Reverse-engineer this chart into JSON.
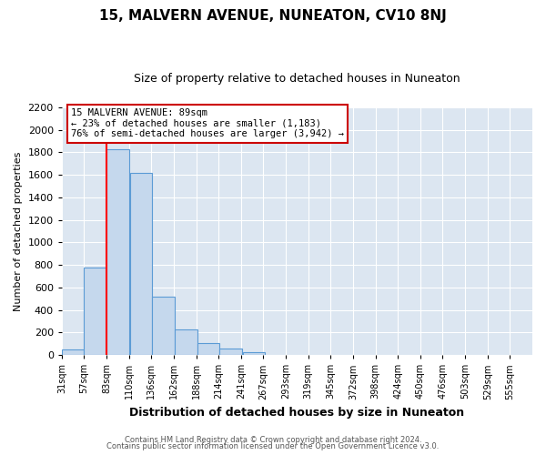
{
  "title": "15, MALVERN AVENUE, NUNEATON, CV10 8NJ",
  "subtitle": "Size of property relative to detached houses in Nuneaton",
  "xlabel": "Distribution of detached houses by size in Nuneaton",
  "ylabel": "Number of detached properties",
  "bar_values": [
    50,
    780,
    1830,
    1620,
    520,
    230,
    110,
    55,
    25
  ],
  "bin_left_edges": [
    31,
    57,
    83,
    110,
    136,
    162,
    188,
    214,
    241
  ],
  "bin_width": 26,
  "all_xtick_labels": [
    "31sqm",
    "57sqm",
    "83sqm",
    "110sqm",
    "136sqm",
    "162sqm",
    "188sqm",
    "214sqm",
    "241sqm",
    "267sqm",
    "293sqm",
    "319sqm",
    "345sqm",
    "372sqm",
    "398sqm",
    "424sqm",
    "450sqm",
    "476sqm",
    "503sqm",
    "529sqm",
    "555sqm"
  ],
  "ylim": [
    0,
    2200
  ],
  "yticks": [
    0,
    200,
    400,
    600,
    800,
    1000,
    1200,
    1400,
    1600,
    1800,
    2000,
    2200
  ],
  "bar_color": "#c5d8ed",
  "bar_edge_color": "#5b9bd5",
  "red_line_x": 83,
  "annotation_title": "15 MALVERN AVENUE: 89sqm",
  "annotation_line1": "← 23% of detached houses are smaller (1,183)",
  "annotation_line2": "76% of semi-detached houses are larger (3,942) →",
  "footer_line1": "Contains HM Land Registry data © Crown copyright and database right 2024.",
  "footer_line2": "Contains public sector information licensed under the Open Government Licence v3.0.",
  "fig_background_color": "#ffffff",
  "plot_background": "#dce6f1",
  "grid_color": "#ffffff",
  "title_fontsize": 11,
  "subtitle_fontsize": 9,
  "xlabel_fontsize": 9,
  "ylabel_fontsize": 8,
  "ytick_fontsize": 8,
  "xtick_fontsize": 7
}
